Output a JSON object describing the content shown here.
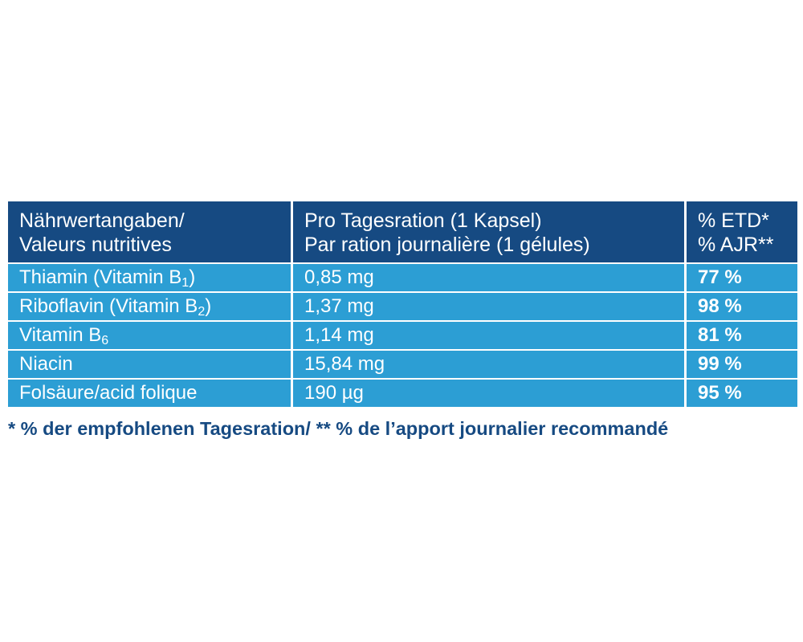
{
  "table": {
    "header": {
      "col1_line1": "Nährwertangaben/",
      "col1_line2": "Valeurs nutritives",
      "col2_line1": "Pro Tagesration (1 Kapsel)",
      "col2_line2": "Par ration journalière (1 gélules)",
      "col3_line1": "% ETD*",
      "col3_line2": "% AJR**"
    },
    "rows": [
      {
        "name": "Thiamin (Vitamin B",
        "sub": "1",
        "suffix": ")",
        "amount": "0,85 mg",
        "percent": "77 %"
      },
      {
        "name": "Riboflavin (Vitamin B",
        "sub": "2",
        "suffix": ")",
        "amount": "1,37 mg",
        "percent": "98 %"
      },
      {
        "name": "Vitamin B",
        "sub": "6",
        "suffix": "",
        "amount": "1,14 mg",
        "percent": "81 %"
      },
      {
        "name": "Niacin",
        "sub": "",
        "suffix": "",
        "amount": "15,84 mg",
        "percent": "99 %"
      },
      {
        "name": "Folsäure/acid folique",
        "sub": "",
        "suffix": "",
        "amount": "190 µg",
        "percent": "95 %"
      }
    ]
  },
  "footnote": "* % der empfohlenen Tagesration/ ** % de l’apport journalier recommandé",
  "colors": {
    "header_bg": "#164a82",
    "row_bg": "#2c9ed4",
    "footnote_text": "#164a82"
  }
}
